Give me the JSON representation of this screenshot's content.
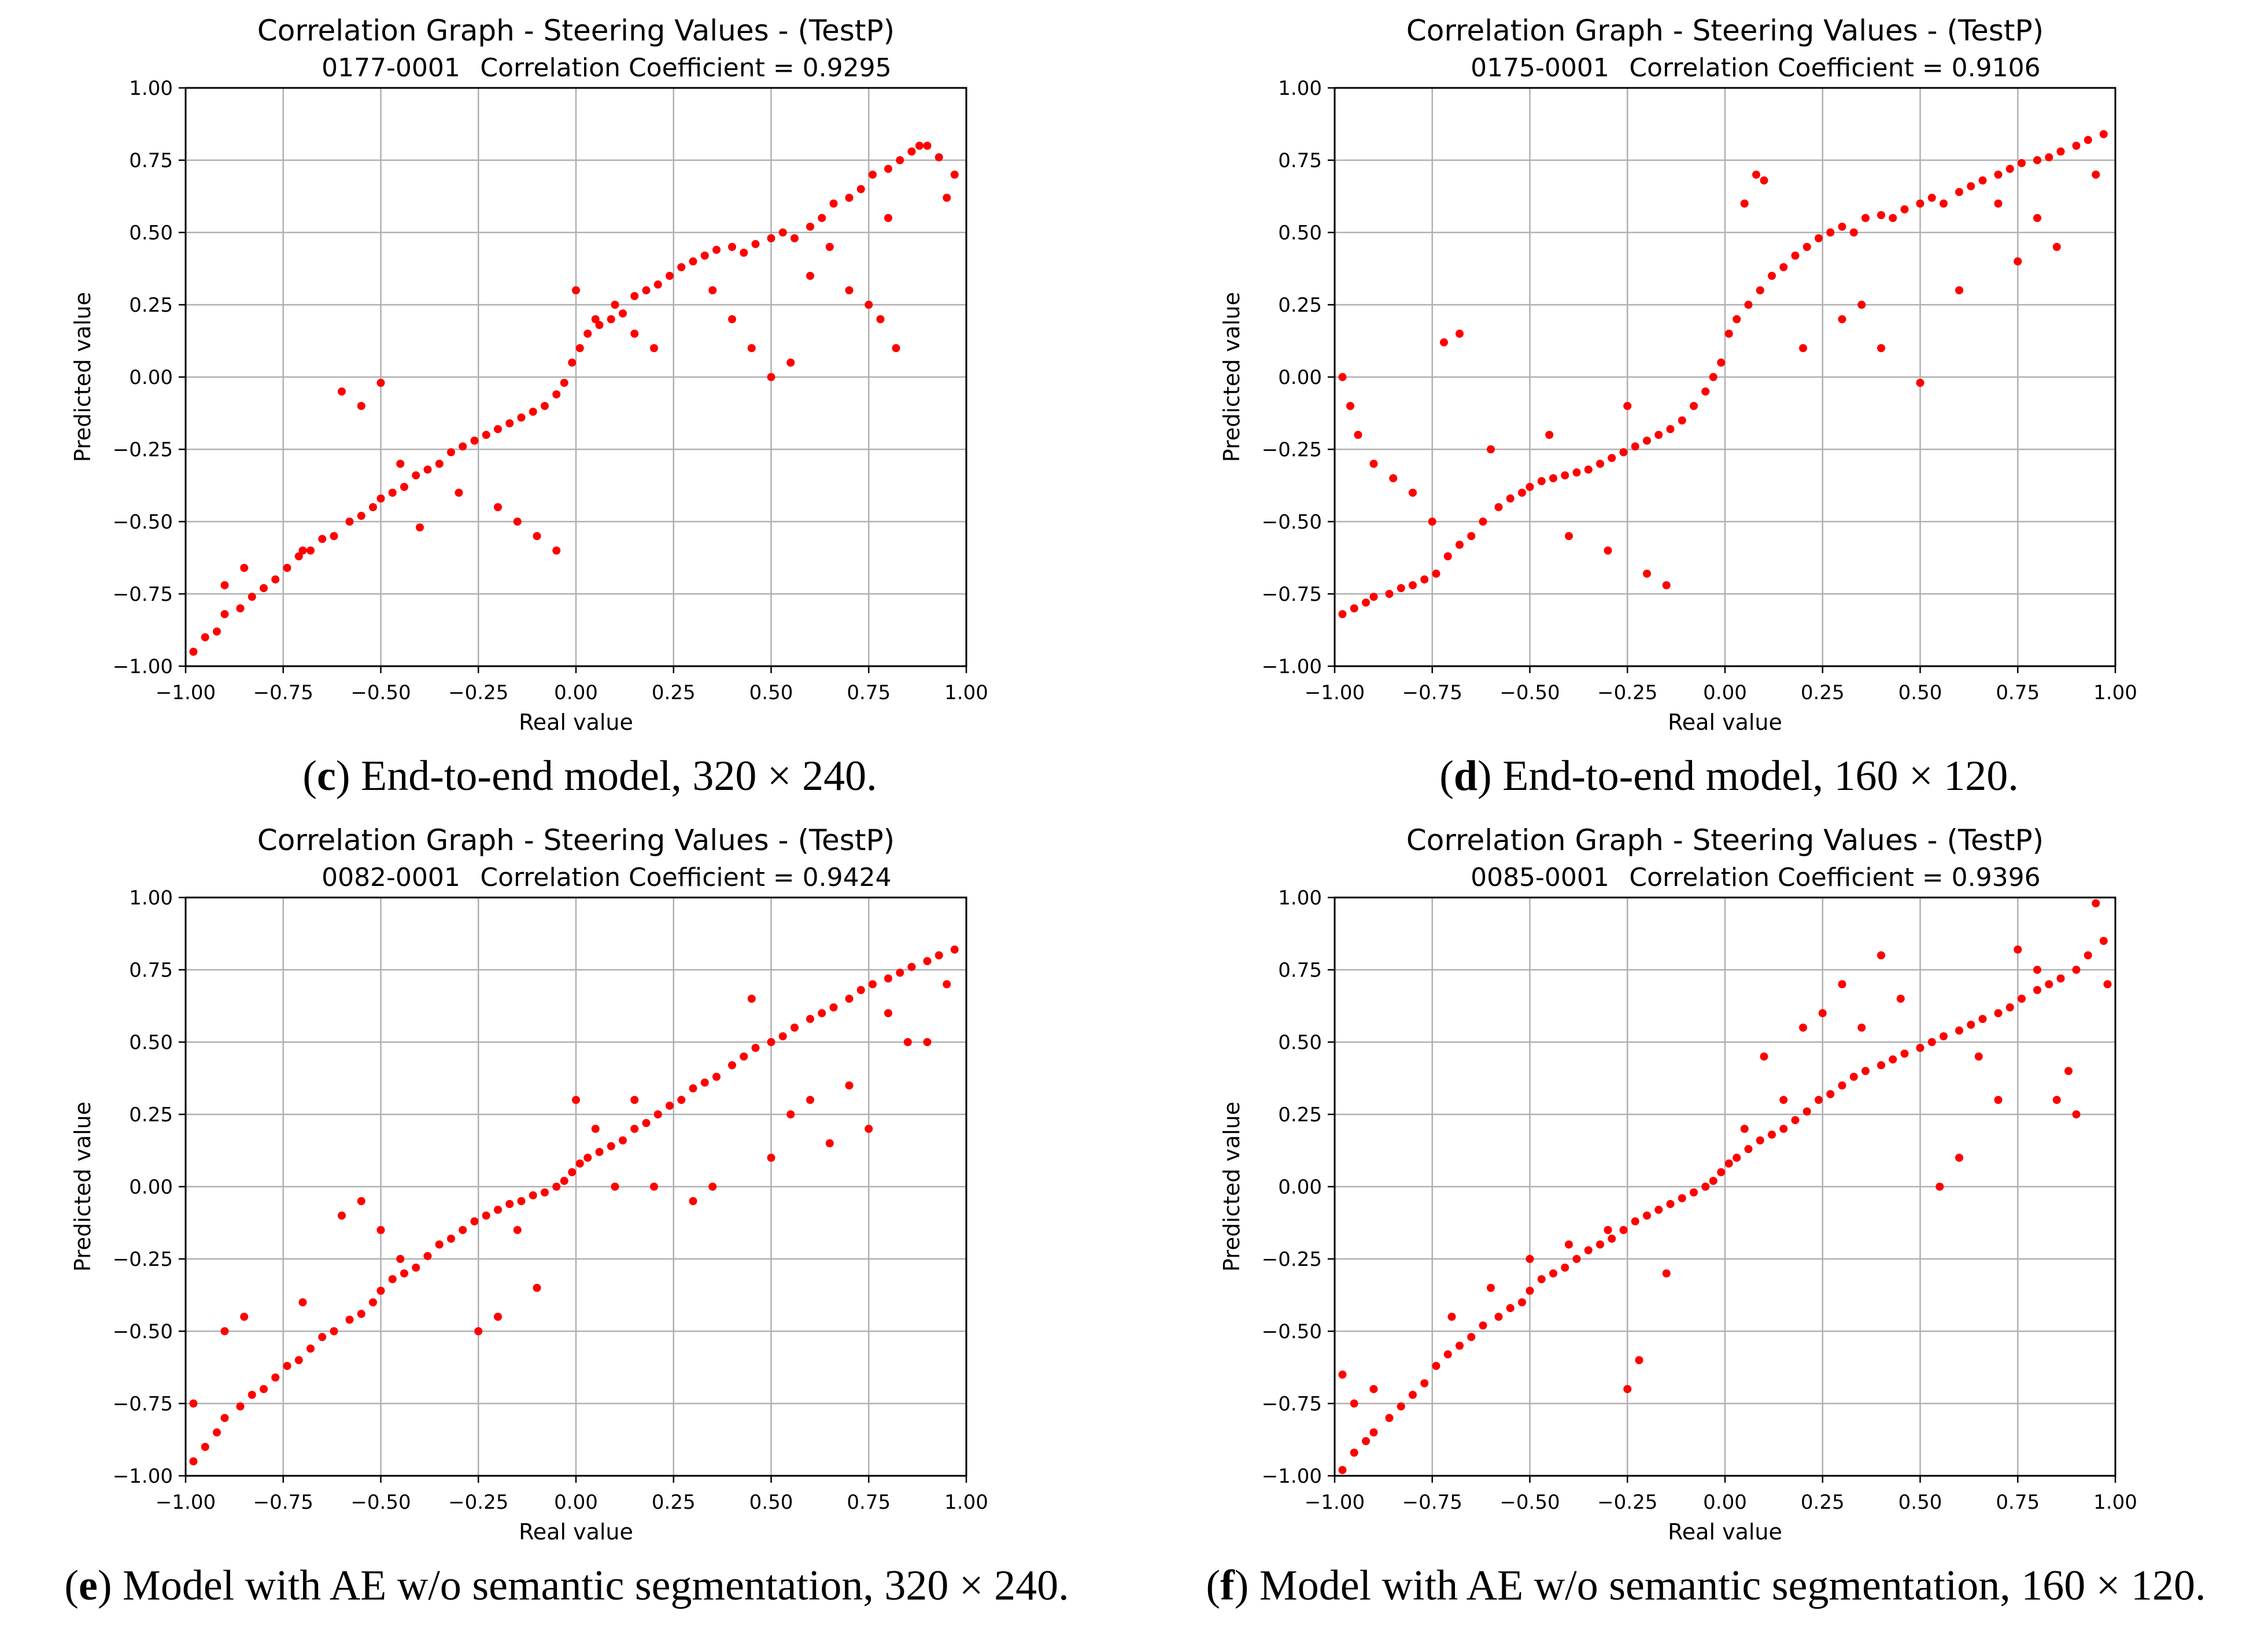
{
  "captions": [
    {
      "letter": "c",
      "text": "End-to-end model, 320 × 240."
    },
    {
      "letter": "d",
      "text": "End-to-end model, 160 × 120."
    },
    {
      "letter": "e",
      "text": "Model with AE w/o semantic segmentation, 320 × 240."
    },
    {
      "letter": "f",
      "text": "Model with AE w/o semantic segmentation, 160 × 120."
    }
  ],
  "colors": {
    "points": "#ff0000",
    "grid": "#b0b0b0",
    "axis": "#000000"
  },
  "chart_data": [
    {
      "type": "scatter",
      "panel": "c",
      "title": "Correlation Graph - Steering Values - (TestP)",
      "subtitle_id": "0177-0001",
      "subtitle_corr": "Correlation Coefficient = 0.9295",
      "xlabel": "Real value",
      "ylabel": "Predicted value",
      "xlim": [
        -1.0,
        1.0
      ],
      "ylim": [
        -1.0,
        1.0
      ],
      "xticks": [
        "−1.00",
        "−0.75",
        "−0.50",
        "−0.25",
        "0.00",
        "0.25",
        "0.50",
        "0.75",
        "1.00"
      ],
      "yticks": [
        "−1.00",
        "−0.75",
        "−0.50",
        "−0.25",
        "0.00",
        "0.25",
        "0.50",
        "0.75",
        "1.00"
      ],
      "grid": true,
      "x": [
        -0.98,
        -0.95,
        -0.92,
        -0.9,
        -0.86,
        -0.83,
        -0.8,
        -0.77,
        -0.74,
        -0.71,
        -0.68,
        -0.65,
        -0.62,
        -0.58,
        -0.55,
        -0.52,
        -0.5,
        -0.47,
        -0.44,
        -0.41,
        -0.38,
        -0.35,
        -0.32,
        -0.29,
        -0.26,
        -0.23,
        -0.2,
        -0.17,
        -0.14,
        -0.11,
        -0.08,
        -0.05,
        -0.03,
        -0.01,
        0.01,
        0.03,
        0.06,
        0.09,
        0.12,
        0.15,
        0.18,
        0.21,
        0.24,
        0.27,
        0.3,
        0.33,
        0.36,
        0.4,
        0.43,
        0.46,
        0.5,
        0.53,
        0.56,
        0.6,
        0.63,
        0.66,
        0.7,
        0.73,
        0.76,
        0.8,
        0.83,
        0.86,
        0.9,
        0.93,
        0.97,
        -0.6,
        -0.55,
        -0.5,
        -0.45,
        -0.2,
        -0.15,
        -0.1,
        0.05,
        0.1,
        0.15,
        0.35,
        0.4,
        0.45,
        0.5,
        0.55,
        0.7,
        0.75,
        0.78,
        0.82,
        -0.9,
        -0.85,
        -0.7,
        -0.4,
        -0.3,
        -0.05,
        0.0,
        0.2,
        0.6,
        0.65,
        0.8,
        0.88,
        0.95
      ],
      "y": [
        -0.95,
        -0.9,
        -0.88,
        -0.82,
        -0.8,
        -0.76,
        -0.73,
        -0.7,
        -0.66,
        -0.62,
        -0.6,
        -0.56,
        -0.55,
        -0.5,
        -0.48,
        -0.45,
        -0.42,
        -0.4,
        -0.38,
        -0.34,
        -0.32,
        -0.3,
        -0.26,
        -0.24,
        -0.22,
        -0.2,
        -0.18,
        -0.16,
        -0.14,
        -0.12,
        -0.1,
        -0.06,
        -0.02,
        0.05,
        0.1,
        0.15,
        0.18,
        0.2,
        0.22,
        0.28,
        0.3,
        0.32,
        0.35,
        0.38,
        0.4,
        0.42,
        0.44,
        0.45,
        0.43,
        0.46,
        0.48,
        0.5,
        0.48,
        0.52,
        0.55,
        0.6,
        0.62,
        0.65,
        0.7,
        0.72,
        0.75,
        0.78,
        0.8,
        0.76,
        0.7,
        -0.05,
        -0.1,
        -0.02,
        -0.3,
        -0.45,
        -0.5,
        -0.55,
        0.2,
        0.25,
        0.15,
        0.3,
        0.2,
        0.1,
        0.0,
        0.05,
        0.3,
        0.25,
        0.2,
        0.1,
        -0.72,
        -0.66,
        -0.6,
        -0.52,
        -0.4,
        -0.6,
        0.3,
        0.1,
        0.35,
        0.45,
        0.55,
        0.8,
        0.62
      ]
    },
    {
      "type": "scatter",
      "panel": "d",
      "title": "Correlation Graph - Steering Values - (TestP)",
      "subtitle_id": "0175-0001",
      "subtitle_corr": "Correlation Coefficient = 0.9106",
      "xlabel": "Real value",
      "ylabel": "Predicted value",
      "xlim": [
        -1.0,
        1.0
      ],
      "ylim": [
        -1.0,
        1.0
      ],
      "xticks": [
        "−1.00",
        "−0.75",
        "−0.50",
        "−0.25",
        "0.00",
        "0.25",
        "0.50",
        "0.75",
        "1.00"
      ],
      "yticks": [
        "−1.00",
        "−0.75",
        "−0.50",
        "−0.25",
        "0.00",
        "0.25",
        "0.50",
        "0.75",
        "1.00"
      ],
      "grid": true,
      "x": [
        -0.98,
        -0.95,
        -0.92,
        -0.9,
        -0.86,
        -0.83,
        -0.8,
        -0.77,
        -0.74,
        -0.71,
        -0.68,
        -0.65,
        -0.62,
        -0.58,
        -0.55,
        -0.52,
        -0.5,
        -0.47,
        -0.44,
        -0.41,
        -0.38,
        -0.35,
        -0.32,
        -0.29,
        -0.26,
        -0.23,
        -0.2,
        -0.17,
        -0.14,
        -0.11,
        -0.08,
        -0.05,
        -0.03,
        -0.01,
        0.01,
        0.03,
        0.06,
        0.09,
        0.12,
        0.15,
        0.18,
        0.21,
        0.24,
        0.27,
        0.3,
        0.33,
        0.36,
        0.4,
        0.43,
        0.46,
        0.5,
        0.53,
        0.56,
        0.6,
        0.63,
        0.66,
        0.7,
        0.73,
        0.76,
        0.8,
        0.83,
        0.86,
        0.9,
        0.93,
        0.97,
        -0.98,
        -0.96,
        -0.94,
        -0.9,
        -0.85,
        -0.8,
        -0.75,
        -0.72,
        -0.68,
        -0.4,
        -0.3,
        -0.2,
        -0.15,
        0.05,
        0.08,
        0.1,
        0.3,
        0.4,
        0.5,
        0.6,
        0.75,
        0.85,
        -0.6,
        -0.45,
        -0.25,
        0.2,
        0.35,
        0.7,
        0.8,
        0.95
      ],
      "y": [
        -0.82,
        -0.8,
        -0.78,
        -0.76,
        -0.75,
        -0.73,
        -0.72,
        -0.7,
        -0.68,
        -0.62,
        -0.58,
        -0.55,
        -0.5,
        -0.45,
        -0.42,
        -0.4,
        -0.38,
        -0.36,
        -0.35,
        -0.34,
        -0.33,
        -0.32,
        -0.3,
        -0.28,
        -0.26,
        -0.24,
        -0.22,
        -0.2,
        -0.18,
        -0.15,
        -0.1,
        -0.05,
        0.0,
        0.05,
        0.15,
        0.2,
        0.25,
        0.3,
        0.35,
        0.38,
        0.42,
        0.45,
        0.48,
        0.5,
        0.52,
        0.5,
        0.55,
        0.56,
        0.55,
        0.58,
        0.6,
        0.62,
        0.6,
        0.64,
        0.66,
        0.68,
        0.7,
        0.72,
        0.74,
        0.75,
        0.76,
        0.78,
        0.8,
        0.82,
        0.84,
        0.0,
        -0.1,
        -0.2,
        -0.3,
        -0.35,
        -0.4,
        -0.5,
        0.12,
        0.15,
        -0.55,
        -0.6,
        -0.68,
        -0.72,
        0.6,
        0.7,
        0.68,
        0.2,
        0.1,
        -0.02,
        0.3,
        0.4,
        0.45,
        -0.25,
        -0.2,
        -0.1,
        0.1,
        0.25,
        0.6,
        0.55,
        0.7
      ]
    },
    {
      "type": "scatter",
      "panel": "e",
      "title": "Correlation Graph - Steering Values - (TestP)",
      "subtitle_id": "0082-0001",
      "subtitle_corr": "Correlation Coefficient = 0.9424",
      "xlabel": "Real value",
      "ylabel": "Predicted value",
      "xlim": [
        -1.0,
        1.0
      ],
      "ylim": [
        -1.0,
        1.0
      ],
      "xticks": [
        "−1.00",
        "−0.75",
        "−0.50",
        "−0.25",
        "0.00",
        "0.25",
        "0.50",
        "0.75",
        "1.00"
      ],
      "yticks": [
        "−1.00",
        "−0.75",
        "−0.50",
        "−0.25",
        "0.00",
        "0.25",
        "0.50",
        "0.75",
        "1.00"
      ],
      "grid": true,
      "x": [
        -0.98,
        -0.95,
        -0.92,
        -0.9,
        -0.86,
        -0.83,
        -0.8,
        -0.77,
        -0.74,
        -0.71,
        -0.68,
        -0.65,
        -0.62,
        -0.58,
        -0.55,
        -0.52,
        -0.5,
        -0.47,
        -0.44,
        -0.41,
        -0.38,
        -0.35,
        -0.32,
        -0.29,
        -0.26,
        -0.23,
        -0.2,
        -0.17,
        -0.14,
        -0.11,
        -0.08,
        -0.05,
        -0.03,
        -0.01,
        0.01,
        0.03,
        0.06,
        0.09,
        0.12,
        0.15,
        0.18,
        0.21,
        0.24,
        0.27,
        0.3,
        0.33,
        0.36,
        0.4,
        0.43,
        0.46,
        0.5,
        0.53,
        0.56,
        0.6,
        0.63,
        0.66,
        0.7,
        0.73,
        0.76,
        0.8,
        0.83,
        0.86,
        0.9,
        0.93,
        0.97,
        -0.98,
        -0.9,
        -0.85,
        -0.6,
        -0.55,
        -0.5,
        -0.45,
        -0.25,
        -0.2,
        -0.1,
        0.0,
        0.05,
        0.2,
        0.3,
        0.35,
        0.55,
        0.6,
        0.7,
        0.75,
        0.8,
        0.85,
        0.95,
        -0.7,
        -0.35,
        -0.15,
        0.1,
        0.15,
        0.45,
        0.5,
        0.65,
        0.9
      ],
      "y": [
        -0.95,
        -0.9,
        -0.85,
        -0.8,
        -0.76,
        -0.72,
        -0.7,
        -0.66,
        -0.62,
        -0.6,
        -0.56,
        -0.52,
        -0.5,
        -0.46,
        -0.44,
        -0.4,
        -0.36,
        -0.32,
        -0.3,
        -0.28,
        -0.24,
        -0.2,
        -0.18,
        -0.15,
        -0.12,
        -0.1,
        -0.08,
        -0.06,
        -0.05,
        -0.03,
        -0.02,
        0.0,
        0.02,
        0.05,
        0.08,
        0.1,
        0.12,
        0.14,
        0.16,
        0.2,
        0.22,
        0.25,
        0.28,
        0.3,
        0.34,
        0.36,
        0.38,
        0.42,
        0.45,
        0.48,
        0.5,
        0.52,
        0.55,
        0.58,
        0.6,
        0.62,
        0.65,
        0.68,
        0.7,
        0.72,
        0.74,
        0.76,
        0.78,
        0.8,
        0.82,
        -0.75,
        -0.5,
        -0.45,
        -0.1,
        -0.05,
        -0.15,
        -0.25,
        -0.5,
        -0.45,
        -0.35,
        0.3,
        0.2,
        0.0,
        -0.05,
        0.0,
        0.25,
        0.3,
        0.35,
        0.2,
        0.6,
        0.5,
        0.7,
        -0.4,
        -0.2,
        -0.15,
        0.0,
        0.3,
        0.65,
        0.1,
        0.15,
        0.5
      ]
    },
    {
      "type": "scatter",
      "panel": "f",
      "title": "Correlation Graph - Steering Values - (TestP)",
      "subtitle_id": "0085-0001",
      "subtitle_corr": "Correlation Coefficient = 0.9396",
      "xlabel": "Real value",
      "ylabel": "Predicted value",
      "xlim": [
        -1.0,
        1.0
      ],
      "ylim": [
        -1.0,
        1.0
      ],
      "xticks": [
        "−1.00",
        "−0.75",
        "−0.50",
        "−0.25",
        "0.00",
        "0.25",
        "0.50",
        "0.75",
        "1.00"
      ],
      "yticks": [
        "−1.00",
        "−0.75",
        "−0.50",
        "−0.25",
        "0.00",
        "0.25",
        "0.50",
        "0.75",
        "1.00"
      ],
      "grid": true,
      "x": [
        -0.98,
        -0.95,
        -0.92,
        -0.9,
        -0.86,
        -0.83,
        -0.8,
        -0.77,
        -0.74,
        -0.71,
        -0.68,
        -0.65,
        -0.62,
        -0.58,
        -0.55,
        -0.52,
        -0.5,
        -0.47,
        -0.44,
        -0.41,
        -0.38,
        -0.35,
        -0.32,
        -0.29,
        -0.26,
        -0.23,
        -0.2,
        -0.17,
        -0.14,
        -0.11,
        -0.08,
        -0.05,
        -0.03,
        -0.01,
        0.01,
        0.03,
        0.06,
        0.09,
        0.12,
        0.15,
        0.18,
        0.21,
        0.24,
        0.27,
        0.3,
        0.33,
        0.36,
        0.4,
        0.43,
        0.46,
        0.5,
        0.53,
        0.56,
        0.6,
        0.63,
        0.66,
        0.7,
        0.73,
        0.76,
        0.8,
        0.83,
        0.86,
        0.9,
        0.93,
        0.97,
        -0.98,
        -0.95,
        -0.9,
        -0.7,
        -0.6,
        -0.5,
        -0.3,
        -0.25,
        -0.22,
        0.1,
        0.2,
        0.25,
        0.3,
        0.4,
        0.55,
        0.6,
        0.75,
        0.8,
        0.85,
        0.9,
        0.95,
        0.98,
        -0.4,
        -0.15,
        0.05,
        0.15,
        0.35,
        0.45,
        0.65,
        0.7,
        0.88
      ],
      "y": [
        -0.98,
        -0.92,
        -0.88,
        -0.85,
        -0.8,
        -0.76,
        -0.72,
        -0.68,
        -0.62,
        -0.58,
        -0.55,
        -0.52,
        -0.48,
        -0.45,
        -0.42,
        -0.4,
        -0.36,
        -0.32,
        -0.3,
        -0.28,
        -0.25,
        -0.22,
        -0.2,
        -0.18,
        -0.15,
        -0.12,
        -0.1,
        -0.08,
        -0.06,
        -0.04,
        -0.02,
        0.0,
        0.02,
        0.05,
        0.08,
        0.1,
        0.13,
        0.16,
        0.18,
        0.2,
        0.23,
        0.26,
        0.3,
        0.32,
        0.35,
        0.38,
        0.4,
        0.42,
        0.44,
        0.46,
        0.48,
        0.5,
        0.52,
        0.54,
        0.56,
        0.58,
        0.6,
        0.62,
        0.65,
        0.68,
        0.7,
        0.72,
        0.75,
        0.8,
        0.85,
        -0.65,
        -0.75,
        -0.7,
        -0.45,
        -0.35,
        -0.25,
        -0.15,
        -0.7,
        -0.6,
        0.45,
        0.55,
        0.6,
        0.7,
        0.8,
        0.0,
        0.1,
        0.82,
        0.75,
        0.3,
        0.25,
        0.98,
        0.7,
        -0.2,
        -0.3,
        0.2,
        0.3,
        0.55,
        0.65,
        0.45,
        0.3,
        0.4
      ]
    }
  ]
}
